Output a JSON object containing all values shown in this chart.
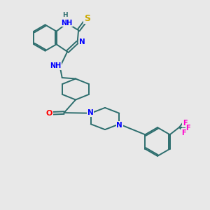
{
  "bg_color": "#e8e8e8",
  "bond_color": "#2d6e6e",
  "bond_width": 1.4,
  "atom_colors": {
    "N": "#0000ff",
    "S": "#ccaa00",
    "O": "#ff0000",
    "F": "#ff00cc",
    "H": "#2d6e6e",
    "C": "#2d6e6e"
  },
  "font_size": 7.5
}
